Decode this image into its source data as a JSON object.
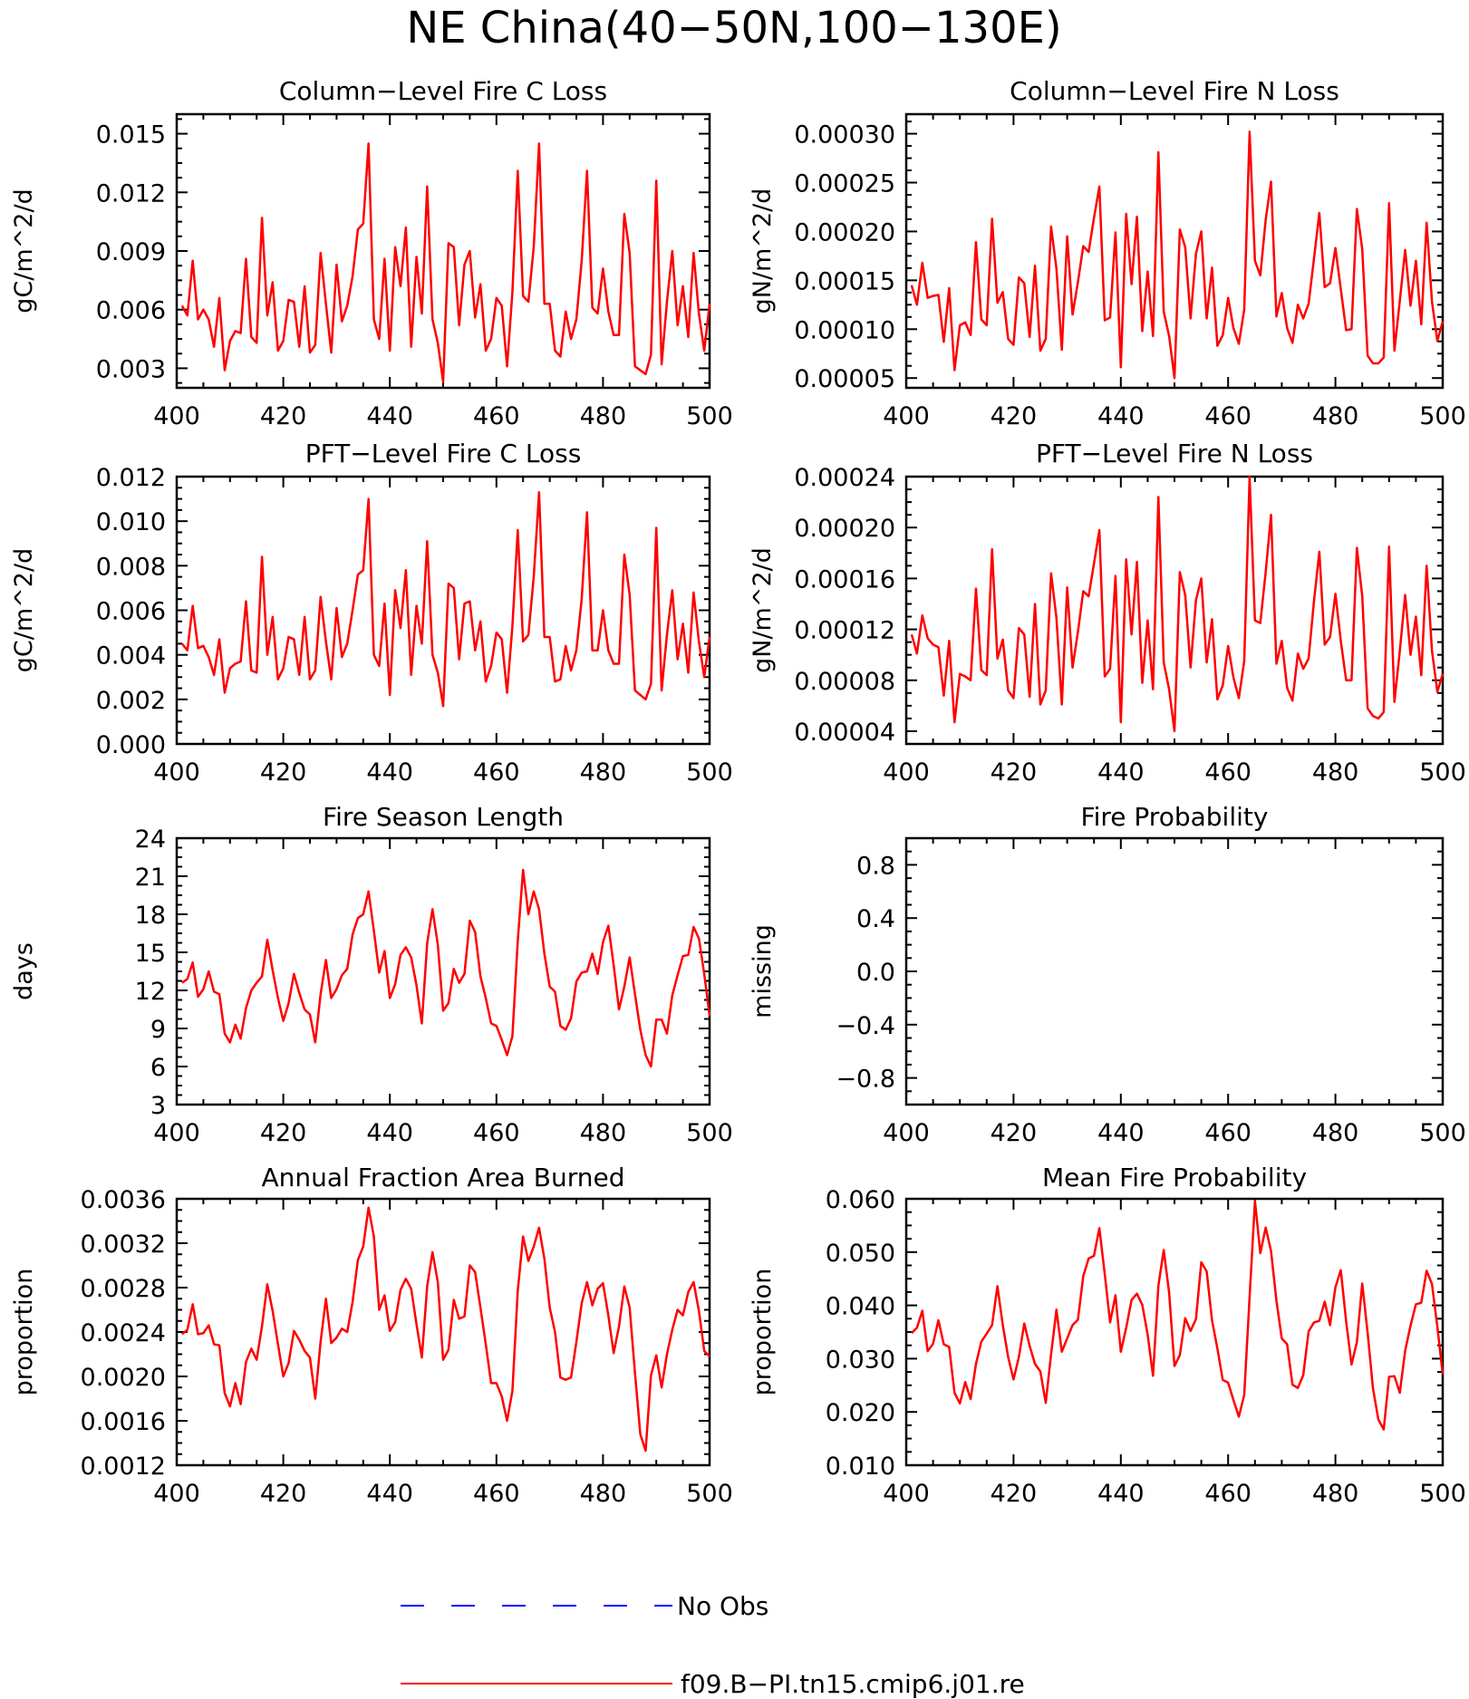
{
  "title": "NE China(40−50N,100−130E)",
  "colors": {
    "model": "#ff0000",
    "obs": "#0000ff",
    "axis": "#000000"
  },
  "legend": [
    {
      "label": "No Obs",
      "style": "dashed",
      "color": "#0000ff"
    },
    {
      "label": "f09.B−PI.tn15.cmip6.j01.re",
      "style": "solid",
      "color": "#ff0000"
    }
  ],
  "chart_data": [
    {
      "type": "line",
      "title": "Column−Level Fire C Loss",
      "ylabel": "gC/m^2/d",
      "xlim": [
        400,
        500
      ],
      "ylim": [
        0.002,
        0.016
      ],
      "x_ticks": [
        "400",
        "420",
        "440",
        "460",
        "480",
        "500"
      ],
      "y_ticks": [
        "0.003",
        "0.006",
        "0.009",
        "0.012",
        "0.015"
      ],
      "x_start": 401,
      "series": [
        {
          "values": [
            0.0062,
            0.0057,
            0.0085,
            0.0055,
            0.006,
            0.0055,
            0.0041,
            0.0066,
            0.0029,
            0.0044,
            0.0049,
            0.0048,
            0.0086,
            0.0046,
            0.0043,
            0.0107,
            0.0057,
            0.0074,
            0.0039,
            0.0044,
            0.0065,
            0.0064,
            0.0041,
            0.0072,
            0.0038,
            0.0042,
            0.0089,
            0.0063,
            0.0038,
            0.0083,
            0.0054,
            0.0062,
            0.0077,
            0.0101,
            0.0104,
            0.0145,
            0.0055,
            0.0045,
            0.0086,
            0.0039,
            0.0092,
            0.0072,
            0.0102,
            0.0041,
            0.0087,
            0.0058,
            0.0123,
            0.0055,
            0.0043,
            0.0023,
            0.0094,
            0.0092,
            0.0052,
            0.0083,
            0.009,
            0.0056,
            0.0073,
            0.0039,
            0.0045,
            0.0066,
            0.0062,
            0.0031,
            0.0069,
            0.0131,
            0.0067,
            0.0064,
            0.0092,
            0.0145,
            0.0063,
            0.0063,
            0.0039,
            0.0036,
            0.0059,
            0.0045,
            0.0055,
            0.0085,
            0.0131,
            0.0061,
            0.0058,
            0.0081,
            0.0059,
            0.0047,
            0.0047,
            0.0109,
            0.0089,
            0.0031,
            0.0029,
            0.0027,
            0.0037,
            0.0126,
            0.0032,
            0.0064,
            0.009,
            0.0052,
            0.0072,
            0.0046,
            0.0089,
            0.0058,
            0.0039,
            0.0063
          ]
        }
      ]
    },
    {
      "type": "line",
      "title": "Column−Level Fire N Loss",
      "ylabel": "gN/m^2/d",
      "xlim": [
        400,
        500
      ],
      "ylim": [
        4e-05,
        0.00032
      ],
      "x_ticks": [
        "400",
        "420",
        "440",
        "460",
        "480",
        "500"
      ],
      "y_ticks": [
        "0.00005",
        "0.00010",
        "0.00015",
        "0.00020",
        "0.00025",
        "0.00030"
      ],
      "x_start": 401,
      "series": [
        {
          "values": [
            0.000145,
            0.000125,
            0.000168,
            0.000132,
            0.000134,
            0.000135,
            8.7e-05,
            0.000142,
            5.8e-05,
            0.000104,
            0.000107,
            9.4e-05,
            0.000189,
            0.00011,
            0.000104,
            0.000213,
            0.000127,
            0.000138,
            9e-05,
            8.4e-05,
            0.000153,
            0.000147,
            9.2e-05,
            0.000165,
            7.8e-05,
            9e-05,
            0.000205,
            0.000162,
            7.9e-05,
            0.000195,
            0.000115,
            0.000148,
            0.000185,
            0.000179,
            0.000214,
            0.000246,
            0.000109,
            0.000112,
            0.000199,
            6.1e-05,
            0.000218,
            0.000146,
            0.000215,
            9.8e-05,
            0.000159,
            9.3e-05,
            0.000281,
            0.000118,
            9.3e-05,
            5e-05,
            0.000202,
            0.000184,
            0.000111,
            0.000177,
            0.0002,
            0.000111,
            0.000163,
            8.3e-05,
            9.4e-05,
            0.000132,
            0.000101,
            8.5e-05,
            0.00012,
            0.000302,
            0.00017,
            0.000155,
            0.000212,
            0.000251,
            0.000113,
            0.000137,
            0.000101,
            8.6e-05,
            0.000125,
            0.000111,
            0.000126,
            0.000172,
            0.000219,
            0.000143,
            0.000147,
            0.000183,
            0.000141,
            9.9e-05,
            0.0001,
            0.000223,
            0.000182,
            7.3e-05,
            6.5e-05,
            6.5e-05,
            7.1e-05,
            0.000229,
            7.8e-05,
            0.000129,
            0.000181,
            0.000124,
            0.00017,
            0.000105,
            0.000209,
            0.000128,
            8.8e-05,
            0.000108
          ]
        }
      ]
    },
    {
      "type": "line",
      "title": "PFT−Level Fire C Loss",
      "ylabel": "gC/m^2/d",
      "xlim": [
        400,
        500
      ],
      "ylim": [
        0.0,
        0.012
      ],
      "x_ticks": [
        "400",
        "420",
        "440",
        "460",
        "480",
        "500"
      ],
      "y_ticks": [
        "0.000",
        "0.002",
        "0.004",
        "0.006",
        "0.008",
        "0.010",
        "0.012"
      ],
      "x_start": 401,
      "series": [
        {
          "values": [
            0.0045,
            0.0042,
            0.0062,
            0.0043,
            0.0044,
            0.0039,
            0.0031,
            0.0047,
            0.0023,
            0.0034,
            0.0036,
            0.0037,
            0.0064,
            0.0033,
            0.0032,
            0.0084,
            0.004,
            0.0057,
            0.0029,
            0.0034,
            0.0048,
            0.0047,
            0.0031,
            0.0057,
            0.0029,
            0.0033,
            0.0066,
            0.0046,
            0.0029,
            0.0061,
            0.0039,
            0.0045,
            0.006,
            0.0076,
            0.0078,
            0.011,
            0.004,
            0.0035,
            0.0063,
            0.0022,
            0.0069,
            0.0052,
            0.0078,
            0.0031,
            0.0062,
            0.0045,
            0.0091,
            0.004,
            0.0032,
            0.0017,
            0.0072,
            0.007,
            0.0038,
            0.0063,
            0.0064,
            0.0042,
            0.0055,
            0.0028,
            0.0035,
            0.005,
            0.0047,
            0.0023,
            0.0053,
            0.0096,
            0.0046,
            0.0049,
            0.0075,
            0.0113,
            0.0048,
            0.0048,
            0.0028,
            0.0029,
            0.0044,
            0.0033,
            0.0042,
            0.0065,
            0.0104,
            0.0042,
            0.0042,
            0.006,
            0.0042,
            0.0036,
            0.0036,
            0.0085,
            0.0067,
            0.0024,
            0.0022,
            0.002,
            0.0027,
            0.0097,
            0.0024,
            0.0049,
            0.0069,
            0.0038,
            0.0054,
            0.0032,
            0.0068,
            0.0046,
            0.003,
            0.0048
          ]
        }
      ]
    },
    {
      "type": "line",
      "title": "PFT−Level Fire N Loss",
      "ylabel": "gN/m^2/d",
      "xlim": [
        400,
        500
      ],
      "ylim": [
        3e-05,
        0.00024
      ],
      "x_ticks": [
        "400",
        "420",
        "440",
        "460",
        "480",
        "500"
      ],
      "y_ticks": [
        "0.00004",
        "0.00008",
        "0.00012",
        "0.00016",
        "0.00020",
        "0.00024"
      ],
      "x_start": 401,
      "series": [
        {
          "values": [
            0.000116,
            0.000101,
            0.000131,
            0.000113,
            0.000108,
            0.000106,
            6.8e-05,
            0.000111,
            4.7e-05,
            8.5e-05,
            8.3e-05,
            8e-05,
            0.000152,
            8.8e-05,
            8.4e-05,
            0.000183,
            9.7e-05,
            0.000112,
            7.2e-05,
            6.6e-05,
            0.000121,
            0.000116,
            6.7e-05,
            0.00014,
            6.1e-05,
            7.2e-05,
            0.000164,
            0.000129,
            6.1e-05,
            0.000153,
            9e-05,
            0.000118,
            0.00015,
            0.000146,
            0.000172,
            0.000198,
            8.3e-05,
            8.9e-05,
            0.000162,
            4.7e-05,
            0.000175,
            0.000116,
            0.000173,
            7.8e-05,
            0.000127,
            7.3e-05,
            0.000224,
            9.4e-05,
            7.3e-05,
            4e-05,
            0.000165,
            0.000147,
            9e-05,
            0.000143,
            0.00016,
            9.4e-05,
            0.000128,
            6.5e-05,
            7.6e-05,
            0.000107,
            8.2e-05,
            6.6e-05,
            9.5e-05,
            0.00024,
            0.000127,
            0.000125,
            0.000165,
            0.00021,
            9.3e-05,
            0.000111,
            7.4e-05,
            6.4e-05,
            0.000101,
            8.9e-05,
            9.7e-05,
            0.000142,
            0.000181,
            0.000108,
            0.000114,
            0.000148,
            0.000111,
            8e-05,
            8e-05,
            0.000184,
            0.000146,
            5.8e-05,
            5.2e-05,
            5e-05,
            5.5e-05,
            0.000185,
            6.3e-05,
            0.000103,
            0.000147,
            0.0001,
            0.00013,
            8.4e-05,
            0.00017,
            0.000103,
            7.1e-05,
            8.5e-05
          ]
        }
      ]
    },
    {
      "type": "line",
      "title": "Fire Season Length",
      "ylabel": "days",
      "xlim": [
        400,
        500
      ],
      "ylim": [
        3,
        24
      ],
      "x_ticks": [
        "400",
        "420",
        "440",
        "460",
        "480",
        "500"
      ],
      "y_ticks": [
        "3",
        "6",
        "9",
        "12",
        "15",
        "18",
        "21",
        "24"
      ],
      "x_start": 401,
      "series": [
        {
          "values": [
            12.6,
            12.9,
            14.2,
            11.5,
            12.1,
            13.5,
            11.9,
            11.7,
            8.6,
            7.9,
            9.3,
            8.2,
            10.6,
            12.0,
            12.6,
            13.1,
            16.0,
            13.6,
            11.4,
            9.6,
            11.0,
            13.3,
            11.8,
            10.5,
            10.1,
            7.9,
            11.7,
            14.4,
            11.4,
            12.1,
            13.2,
            13.7,
            16.4,
            17.7,
            18.0,
            19.8,
            16.7,
            13.4,
            15.1,
            11.4,
            12.5,
            14.8,
            15.4,
            14.6,
            12.4,
            9.4,
            15.7,
            18.4,
            15.6,
            10.4,
            11.0,
            13.7,
            12.6,
            13.3,
            17.5,
            16.6,
            13.1,
            11.4,
            9.4,
            9.2,
            8.1,
            6.9,
            8.4,
            15.9,
            21.5,
            18.0,
            19.8,
            18.4,
            14.9,
            12.3,
            11.9,
            9.2,
            8.9,
            9.8,
            12.7,
            13.4,
            13.5,
            14.9,
            13.3,
            15.8,
            17.1,
            14.0,
            10.5,
            12.3,
            14.6,
            11.7,
            8.9,
            6.9,
            6.0,
            9.7,
            9.7,
            8.6,
            11.6,
            13.2,
            14.7,
            14.8,
            17.0,
            16.1,
            13.3,
            10.0
          ]
        }
      ]
    },
    {
      "type": "line",
      "title": "Fire Probability",
      "ylabel": "missing",
      "xlim": [
        400,
        500
      ],
      "ylim": [
        -1.0,
        1.0
      ],
      "x_ticks": [
        "400",
        "420",
        "440",
        "460",
        "480",
        "500"
      ],
      "y_ticks": [
        "−0.8",
        "−0.4",
        "0.0",
        "0.4",
        "0.8"
      ],
      "x_start": 401,
      "series": [
        {
          "values": []
        }
      ]
    },
    {
      "type": "line",
      "title": "Annual Fraction Area Burned",
      "ylabel": "proportion",
      "xlim": [
        400,
        500
      ],
      "ylim": [
        0.0012,
        0.0036
      ],
      "x_ticks": [
        "400",
        "420",
        "440",
        "460",
        "480",
        "500"
      ],
      "y_ticks": [
        "0.0012",
        "0.0016",
        "0.0020",
        "0.0024",
        "0.0028",
        "0.0032",
        "0.0036"
      ],
      "x_start": 401,
      "series": [
        {
          "values": [
            0.00238,
            0.00242,
            0.00265,
            0.00238,
            0.00239,
            0.00246,
            0.00229,
            0.00228,
            0.00185,
            0.00173,
            0.00194,
            0.00175,
            0.00213,
            0.00225,
            0.00215,
            0.00245,
            0.00283,
            0.00259,
            0.00229,
            0.002,
            0.00212,
            0.00241,
            0.00233,
            0.00223,
            0.00217,
            0.0018,
            0.00231,
            0.0027,
            0.0023,
            0.00235,
            0.00243,
            0.0024,
            0.00267,
            0.00305,
            0.00317,
            0.00352,
            0.00326,
            0.0026,
            0.00273,
            0.00241,
            0.00249,
            0.00278,
            0.00288,
            0.00279,
            0.00247,
            0.00217,
            0.00281,
            0.00312,
            0.00285,
            0.00215,
            0.00224,
            0.00269,
            0.00252,
            0.00254,
            0.003,
            0.00294,
            0.00262,
            0.00229,
            0.00194,
            0.00194,
            0.00182,
            0.0016,
            0.00187,
            0.00277,
            0.00326,
            0.00304,
            0.00317,
            0.00334,
            0.00306,
            0.00262,
            0.0024,
            0.00199,
            0.00197,
            0.00199,
            0.00231,
            0.00266,
            0.00285,
            0.00264,
            0.00279,
            0.00284,
            0.00255,
            0.00221,
            0.00245,
            0.00281,
            0.00262,
            0.00203,
            0.00148,
            0.00133,
            0.00201,
            0.00219,
            0.0019,
            0.0022,
            0.00242,
            0.0026,
            0.00255,
            0.00276,
            0.00285,
            0.00259,
            0.00223,
            0.00218
          ]
        }
      ]
    },
    {
      "type": "line",
      "title": "Mean Fire Probability",
      "ylabel": "proportion",
      "xlim": [
        400,
        500
      ],
      "ylim": [
        0.01,
        0.06
      ],
      "x_ticks": [
        "400",
        "420",
        "440",
        "460",
        "480",
        "500"
      ],
      "y_ticks": [
        "0.010",
        "0.020",
        "0.030",
        "0.040",
        "0.050",
        "0.060"
      ],
      "x_start": 401,
      "series": [
        {
          "values": [
            0.0348,
            0.0358,
            0.039,
            0.0314,
            0.0328,
            0.0372,
            0.0327,
            0.0322,
            0.0236,
            0.0216,
            0.0256,
            0.0224,
            0.029,
            0.0332,
            0.0347,
            0.0363,
            0.0436,
            0.0363,
            0.0303,
            0.0261,
            0.0303,
            0.0366,
            0.0324,
            0.029,
            0.0276,
            0.0217,
            0.0308,
            0.0392,
            0.0313,
            0.0338,
            0.0363,
            0.0373,
            0.0455,
            0.0488,
            0.0493,
            0.0545,
            0.0459,
            0.0368,
            0.0419,
            0.0313,
            0.0358,
            0.041,
            0.0422,
            0.0401,
            0.0345,
            0.0268,
            0.0437,
            0.0504,
            0.0424,
            0.0286,
            0.0307,
            0.0376,
            0.0352,
            0.0374,
            0.0481,
            0.0464,
            0.0372,
            0.0319,
            0.026,
            0.0255,
            0.0222,
            0.0191,
            0.0232,
            0.0415,
            0.0596,
            0.0498,
            0.0546,
            0.0502,
            0.0409,
            0.0338,
            0.0327,
            0.0251,
            0.0245,
            0.0269,
            0.0351,
            0.0368,
            0.0371,
            0.0407,
            0.0363,
            0.0434,
            0.0466,
            0.037,
            0.0289,
            0.0331,
            0.0441,
            0.0349,
            0.0244,
            0.0186,
            0.0167,
            0.0266,
            0.0267,
            0.0236,
            0.0315,
            0.0362,
            0.0402,
            0.0405,
            0.0465,
            0.044,
            0.036,
            0.0271
          ]
        }
      ]
    }
  ]
}
